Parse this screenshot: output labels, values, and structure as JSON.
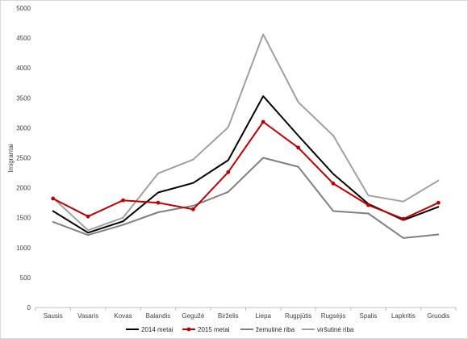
{
  "chart_data": {
    "type": "line",
    "title": "",
    "xlabel": "",
    "ylabel": "Imigrantai",
    "ylim": [
      0,
      5000
    ],
    "yticks": [
      0,
      500,
      1000,
      1500,
      2000,
      2500,
      3000,
      3500,
      4000,
      4500,
      5000
    ],
    "grid": false,
    "legend_position": "bottom",
    "categories": [
      "Sausis",
      "Vasaris",
      "Kovas",
      "Balandis",
      "Gegužė",
      "Birželis",
      "Liepa",
      "Rugpjūtis",
      "Rugsėjis",
      "Spalis",
      "Lapkritis",
      "Gruodis"
    ],
    "series": [
      {
        "name": "2014 metai",
        "color": "#000000",
        "marker": "none",
        "values": [
          1610,
          1250,
          1440,
          1920,
          2080,
          2460,
          3530,
          2870,
          2230,
          1730,
          1460,
          1680
        ]
      },
      {
        "name": "2015 metai",
        "color": "#c00000",
        "marker": "circle",
        "values": [
          1820,
          1520,
          1790,
          1750,
          1640,
          2260,
          3100,
          2670,
          2070,
          1710,
          1480,
          1750
        ]
      },
      {
        "name": "žemutinė riba",
        "color": "#808080",
        "marker": "none",
        "values": [
          1430,
          1210,
          1380,
          1590,
          1700,
          1930,
          2500,
          2350,
          1610,
          1570,
          1160,
          1220
        ]
      },
      {
        "name": "viršutinė riba",
        "color": "#a0a0a0",
        "marker": "none",
        "values": [
          1830,
          1290,
          1500,
          2240,
          2470,
          3010,
          4560,
          3430,
          2870,
          1870,
          1770,
          2120
        ]
      }
    ]
  }
}
